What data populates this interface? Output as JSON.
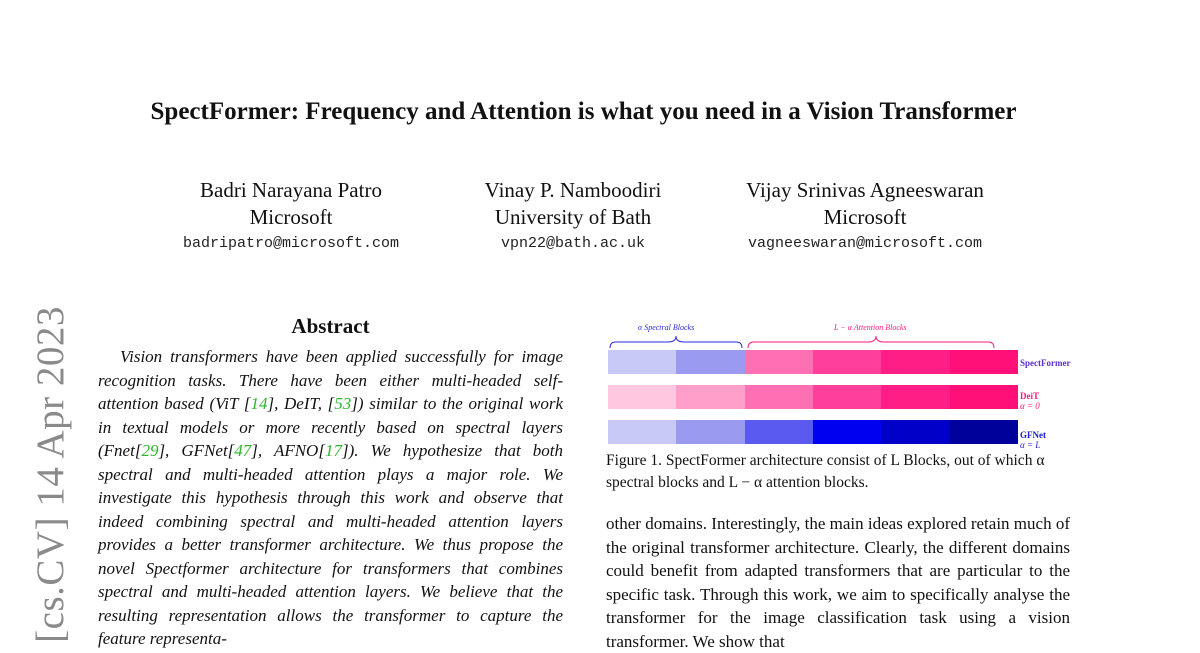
{
  "arxiv_stamp": "[cs.CV]  14 Apr 2023",
  "title": "SpectFormer: Frequency and Attention is what you need in a Vision Transformer",
  "authors": [
    {
      "name": "Badri Narayana Patro",
      "affiliation": "Microsoft",
      "email": "badripatro@microsoft.com"
    },
    {
      "name": "Vinay P. Namboodiri",
      "affiliation": "University of Bath",
      "email": "vpn22@bath.ac.uk"
    },
    {
      "name": "Vijay Srinivas Agneeswaran",
      "affiliation": "Microsoft",
      "email": "vagneeswaran@microsoft.com"
    }
  ],
  "abstract": {
    "heading": "Abstract",
    "p1": "Vision transformers have been applied successfully for image recognition tasks. There have been either multi-headed self-attention based (ViT [",
    "c1": "14",
    "p2": "], DeIT, [",
    "c2": "53",
    "p3": "]) similar to the original work in textual models or more recently based on spectral layers (Fnet[",
    "c3": "29",
    "p4": "], GFNet[",
    "c4": "47",
    "p5": "], AFNO[",
    "c5": "17",
    "p6": "]). We hypothesize that both spectral and multi-headed attention plays a major role. We investigate this hypothesis through this work and observe that indeed combining spectral and multi-headed attention layers provides a better transformer architecture. We thus propose the novel Spectformer architecture for transformers that combines spectral and multi-headed attention layers. We believe that the resulting representation allows the transformer to capture the feature representa-"
  },
  "figure": {
    "brace_spectral": "α   Spectral   Blocks",
    "brace_attention": "L − α   Attention   Blocks",
    "rows": [
      {
        "label": "SpectFormer",
        "sublabel": "",
        "label_color": "#5a2dd6",
        "colors": [
          "#c9c9f7",
          "#9a9af0",
          "#ff6fb3",
          "#ff3f9a",
          "#ff1e86",
          "#ff0f78"
        ]
      },
      {
        "label": "DeiT",
        "sublabel": "α = 0",
        "label_color": "#ff1a7a",
        "colors": [
          "#ffc8e0",
          "#ff9fca",
          "#ff6fb3",
          "#ff3f9a",
          "#ff1e86",
          "#ff0f78"
        ]
      },
      {
        "label": "GFNet",
        "sublabel": "α = L",
        "label_color": "#1a1ad6",
        "colors": [
          "#c9c9f7",
          "#9a9af0",
          "#5a5af0",
          "#0000f0",
          "#0000c8",
          "#00009a"
        ]
      }
    ],
    "caption": "Figure 1. SpectFormer architecture consist of L Blocks, out of which α spectral blocks and L − α attention blocks."
  },
  "body_text": "other domains. Interestingly, the main ideas explored retain much of the original transformer architecture. Clearly, the different domains could benefit from adapted transformers that are particular to the specific task. Through this work, we aim to specifically analyse the transformer for the image classification task using a vision transformer. We show that"
}
